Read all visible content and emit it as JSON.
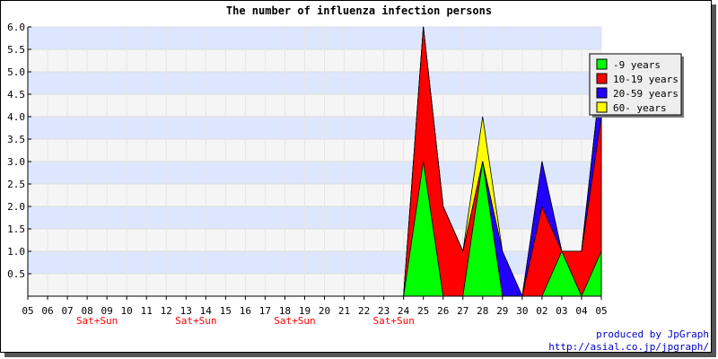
{
  "chart_data": {
    "type": "area",
    "title": "The number of influenza infection persons",
    "xlabel": "",
    "ylabel": "",
    "ylim": [
      0,
      6
    ],
    "yticks": [
      "0.5",
      "1.0",
      "1.5",
      "2.0",
      "2.5",
      "3.0",
      "3.5",
      "4.0",
      "4.5",
      "5.0",
      "5.5",
      "6.0"
    ],
    "categories": [
      "05",
      "06",
      "07",
      "08",
      "09",
      "10",
      "11",
      "12",
      "13",
      "14",
      "15",
      "16",
      "17",
      "18",
      "19",
      "20",
      "21",
      "22",
      "23",
      "24",
      "25",
      "26",
      "27",
      "28",
      "29",
      "30",
      "02",
      "03",
      "04",
      "05"
    ],
    "weekend_label": "Sat+Sun",
    "weekend_indices": [
      3,
      8,
      13,
      18
    ],
    "stacked": true,
    "grid": true,
    "legend_position": "top-right",
    "series": [
      {
        "name": "-9 years",
        "color": "#00ff00",
        "values": [
          0,
          0,
          0,
          0,
          0,
          0,
          0,
          0,
          0,
          0,
          0,
          0,
          0,
          0,
          0,
          0,
          0,
          0,
          0,
          0,
          3,
          0,
          0,
          3,
          0,
          0,
          0,
          1,
          0,
          1
        ]
      },
      {
        "name": "10-19 years",
        "color": "#ff0000",
        "values": [
          0,
          0,
          0,
          0,
          0,
          0,
          0,
          0,
          0,
          0,
          0,
          0,
          0,
          0,
          0,
          0,
          0,
          0,
          0,
          0,
          3,
          2,
          1,
          0,
          0,
          0,
          2,
          0,
          1,
          3
        ]
      },
      {
        "name": "20-59 years",
        "color": "#2200ff",
        "values": [
          0,
          0,
          0,
          0,
          0,
          0,
          0,
          0,
          0,
          0,
          0,
          0,
          0,
          0,
          0,
          0,
          0,
          0,
          0,
          0,
          0,
          0,
          0,
          0,
          1,
          0,
          1,
          0,
          0,
          1
        ]
      },
      {
        "name": "60- years",
        "color": "#ffff00",
        "values": [
          0,
          0,
          0,
          0,
          0,
          0,
          0,
          0,
          0,
          0,
          0,
          0,
          0,
          0,
          0,
          0,
          0,
          0,
          0,
          0,
          0,
          0,
          0,
          1,
          0,
          0,
          0,
          0,
          0,
          0
        ]
      }
    ]
  },
  "footer": {
    "line1": "produced by JpGraph",
    "line2": "http://asial.co.jp/jpgraph/"
  },
  "colors": {
    "band_blue": "#dde6ff",
    "band_gray": "#f5f5f5",
    "weekend_text": "#ff0000",
    "footer_text": "#0000cc"
  }
}
